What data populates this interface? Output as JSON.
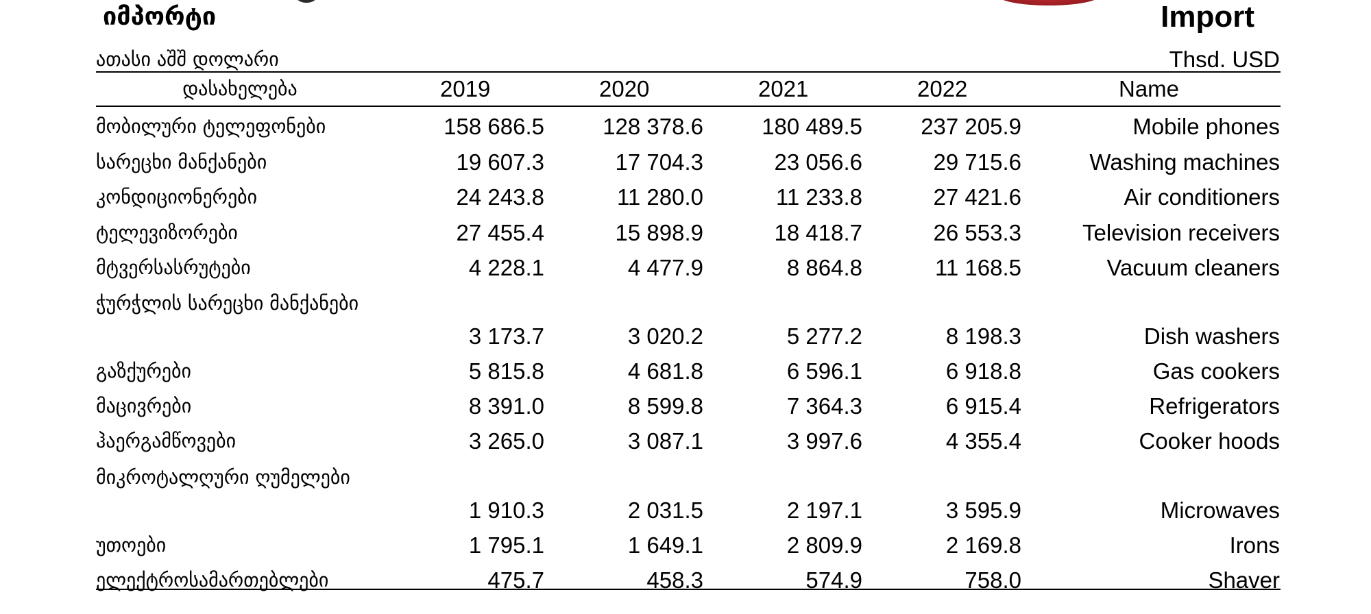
{
  "header": {
    "title_ka": "იმპორტი",
    "title_en": "Import",
    "unit_ka": "ათასი აშშ დოლარი",
    "unit_en": "Thsd. USD"
  },
  "columns": {
    "name_ka": "დასახელება",
    "years": [
      "2019",
      "2020",
      "2021",
      "2022"
    ],
    "name_en": "Name"
  },
  "rows": [
    {
      "name_ka": "მობილური ტელეფონები",
      "values": [
        "158 686.5",
        "128 378.6",
        "180 489.5",
        "237 205.9"
      ],
      "name_en": "Mobile phones"
    },
    {
      "name_ka": "სარეცხი მანქანები",
      "values": [
        "19 607.3",
        "17 704.3",
        "23 056.6",
        "29 715.6"
      ],
      "name_en": "Washing machines"
    },
    {
      "name_ka": "კონდიციონერები",
      "values": [
        "24 243.8",
        "11 280.0",
        "11 233.8",
        "27 421.6"
      ],
      "name_en": "Air conditioners"
    },
    {
      "name_ka": "ტელევიზორები",
      "values": [
        "27 455.4",
        "15 898.9",
        "18 418.7",
        "26 553.3"
      ],
      "name_en": "Television receivers"
    },
    {
      "name_ka": "მტვერსასრუტები",
      "values": [
        "4 228.1",
        "4 477.9",
        "8 864.8",
        "11 168.5"
      ],
      "name_en": "Vacuum cleaners"
    },
    {
      "name_ka": "ჭურჭლის სარეცხი მანქანები",
      "values": [
        "3 173.7",
        "3 020.2",
        "5 277.2",
        "8 198.3"
      ],
      "name_en": "Dish washers"
    },
    {
      "name_ka": "გაზქურები",
      "values": [
        "5 815.8",
        "4 681.8",
        "6 596.1",
        "6 918.8"
      ],
      "name_en": "Gas cookers"
    },
    {
      "name_ka": "მაცივრები",
      "values": [
        "8 391.0",
        "8 599.8",
        "7 364.3",
        "6 915.4"
      ],
      "name_en": "Refrigerators"
    },
    {
      "name_ka": "ჰაერგამწოვები",
      "values": [
        "3 265.0",
        "3 087.1",
        "3 997.6",
        "4 355.4"
      ],
      "name_en": "Cooker hoods"
    },
    {
      "name_ka": "მიკროტალღური ღუმელები",
      "values": [
        "1 910.3",
        "2 031.5",
        "2 197.1",
        "3 595.9"
      ],
      "name_en": "Microwaves"
    },
    {
      "name_ka": "უთოები",
      "values": [
        "1 795.1",
        "1 649.1",
        "2 809.9",
        "2 169.8"
      ],
      "name_en": "Irons"
    },
    {
      "name_ka": "ელექტროსამართებლები",
      "values": [
        "475.7",
        "458.3",
        "574.9",
        "758.0"
      ],
      "name_en": "Shaver"
    }
  ]
}
